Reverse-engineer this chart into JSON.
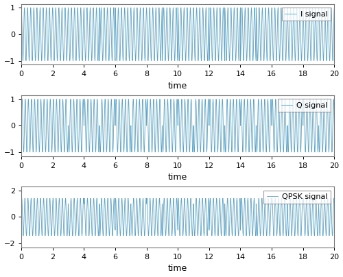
{
  "line_color": "#5BA3C9",
  "line_width": 0.6,
  "xlim": [
    0,
    20
  ],
  "ylim_iq": [
    -1.15,
    1.15
  ],
  "ylim_qpsk": [
    -2.3,
    2.3
  ],
  "yticks_iq": [
    -1,
    0,
    1
  ],
  "yticks_qpsk": [
    -2,
    0,
    2
  ],
  "xticks": [
    0,
    2,
    4,
    6,
    8,
    10,
    12,
    14,
    16,
    18,
    20
  ],
  "xlabel": "time",
  "legends": [
    "I signal",
    "Q signal",
    "QPSK signal"
  ],
  "fc": 5.0,
  "fs": 2000,
  "T": 20,
  "symbol_duration": 1.0,
  "I_bits": [
    1,
    1,
    1,
    1,
    1,
    -1,
    1,
    1,
    1,
    -1,
    1,
    1,
    -1,
    1,
    -1,
    1,
    1,
    1,
    1,
    1
  ],
  "Q_bits": [
    1,
    1,
    1,
    -1,
    1,
    -1,
    1,
    -1,
    1,
    -1,
    1,
    -1,
    1,
    -1,
    1,
    -1,
    1,
    -1,
    1,
    -1
  ],
  "background_color": "#ffffff",
  "tick_fontsize": 8,
  "label_fontsize": 9,
  "legend_fontsize": 8,
  "fig_width": 5.0,
  "fig_height": 4.04,
  "dpi": 100
}
